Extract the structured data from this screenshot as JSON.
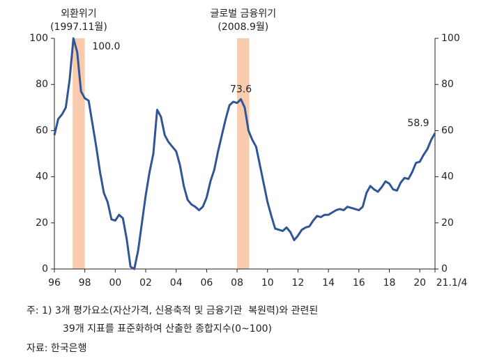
{
  "chart_data": {
    "type": "line",
    "x": [
      1996.0,
      1996.25,
      1996.5,
      1996.75,
      1997.0,
      1997.25,
      1997.5,
      1997.75,
      1998.0,
      1998.25,
      1998.5,
      1998.75,
      1999.0,
      1999.25,
      1999.5,
      1999.75,
      2000.0,
      2000.25,
      2000.5,
      2000.75,
      2001.0,
      2001.25,
      2001.5,
      2001.75,
      2002.0,
      2002.25,
      2002.5,
      2002.75,
      2003.0,
      2003.25,
      2003.5,
      2003.75,
      2004.0,
      2004.25,
      2004.5,
      2004.75,
      2005.0,
      2005.25,
      2005.5,
      2005.75,
      2006.0,
      2006.25,
      2006.5,
      2006.75,
      2007.0,
      2007.25,
      2007.5,
      2007.75,
      2008.0,
      2008.25,
      2008.5,
      2008.75,
      2009.0,
      2009.25,
      2009.5,
      2009.75,
      2010.0,
      2010.25,
      2010.5,
      2010.75,
      2011.0,
      2011.25,
      2011.5,
      2011.75,
      2012.0,
      2012.25,
      2012.5,
      2012.75,
      2013.0,
      2013.25,
      2013.5,
      2013.75,
      2014.0,
      2014.25,
      2014.5,
      2014.75,
      2015.0,
      2015.25,
      2015.5,
      2015.75,
      2016.0,
      2016.25,
      2016.5,
      2016.75,
      2017.0,
      2017.25,
      2017.5,
      2017.75,
      2018.0,
      2018.25,
      2018.5,
      2018.75,
      2019.0,
      2019.25,
      2019.5,
      2019.75,
      2020.0,
      2020.25,
      2020.5,
      2020.75,
      2021.0
    ],
    "series": [
      {
        "color": "#2f5597",
        "values": [
          58,
          65,
          67,
          70,
          82,
          100,
          94,
          77,
          74,
          73,
          63,
          53,
          42,
          33,
          29,
          21.5,
          21,
          23.5,
          22,
          13,
          1,
          0,
          8,
          20,
          32,
          42,
          50,
          69,
          66,
          58,
          55,
          53,
          51,
          45,
          36,
          30,
          28,
          27,
          25.5,
          27,
          31,
          38,
          43,
          51,
          58,
          65,
          71,
          72.5,
          72,
          73.6,
          70,
          60,
          56,
          53,
          45,
          37,
          29,
          23,
          17.5,
          17,
          16.5,
          18,
          16,
          12.5,
          14.5,
          17,
          18,
          18.5,
          21,
          23,
          22.5,
          23.5,
          23.5,
          24.5,
          25.5,
          26,
          25.5,
          27,
          26.5,
          26,
          25.5,
          27,
          33,
          36,
          34.5,
          33.5,
          35.5,
          38,
          37,
          34.5,
          34,
          37.5,
          39.5,
          39,
          42,
          46,
          46.5,
          49.5,
          52,
          56,
          58.9
        ],
        "value_labels": [
          null,
          null,
          null,
          null,
          null,
          "100.0",
          null,
          null,
          null,
          null,
          null,
          null,
          null,
          null,
          null,
          null,
          null,
          null,
          null,
          null,
          null,
          null,
          null,
          null,
          null,
          null,
          null,
          null,
          null,
          null,
          null,
          null,
          null,
          null,
          null,
          null,
          null,
          null,
          null,
          null,
          null,
          null,
          null,
          null,
          null,
          null,
          null,
          null,
          null,
          "73.6",
          null,
          null,
          null,
          null,
          null,
          null,
          null,
          null,
          null,
          null,
          null,
          null,
          null,
          null,
          null,
          null,
          null,
          null,
          null,
          null,
          null,
          null,
          null,
          null,
          null,
          null,
          null,
          null,
          null,
          null,
          null,
          null,
          null,
          null,
          null,
          null,
          null,
          null,
          null,
          null,
          null,
          null,
          null,
          null,
          null,
          null,
          null,
          null,
          null,
          null,
          "58.9"
        ]
      }
    ],
    "xlim": [
      1996,
      2021
    ],
    "xticks": [
      {
        "value": 1996,
        "label": "96"
      },
      {
        "value": 1998,
        "label": "98"
      },
      {
        "value": 2000,
        "label": "00"
      },
      {
        "value": 2002,
        "label": "02"
      },
      {
        "value": 2004,
        "label": "04"
      },
      {
        "value": 2006,
        "label": "06"
      },
      {
        "value": 2008,
        "label": "08"
      },
      {
        "value": 2010,
        "label": "10"
      },
      {
        "value": 2012,
        "label": "12"
      },
      {
        "value": 2014,
        "label": "14"
      },
      {
        "value": 2016,
        "label": "16"
      },
      {
        "value": 2018,
        "label": "18"
      },
      {
        "value": 2020,
        "label": "20"
      },
      {
        "value": 2021,
        "label": "21.1/4"
      }
    ],
    "ylim": [
      0,
      100
    ],
    "yticks": [
      0,
      20,
      40,
      60,
      80,
      100
    ],
    "y2lim": [
      0,
      100
    ],
    "y2ticks": [
      0,
      20,
      40,
      60,
      80,
      100
    ],
    "shaded_periods": [
      {
        "start": 1997.2,
        "end": 1998.0,
        "color": "#f8cbad",
        "label": "외환위기",
        "sublabel": "(1997.11월)"
      },
      {
        "start": 2008.0,
        "end": 2008.8,
        "color": "#f8cbad",
        "label": "글로벌 금융위기",
        "sublabel": "(2008.9월)"
      }
    ],
    "notes": [
      "주: 1) 3개 평가요소(자산가격, 신용축적 및 금융기관  복원력)와 관련된",
      "39개 지표를 표준화하여 산출한 종합지수(0~100)",
      "자료: 한국은행"
    ]
  }
}
